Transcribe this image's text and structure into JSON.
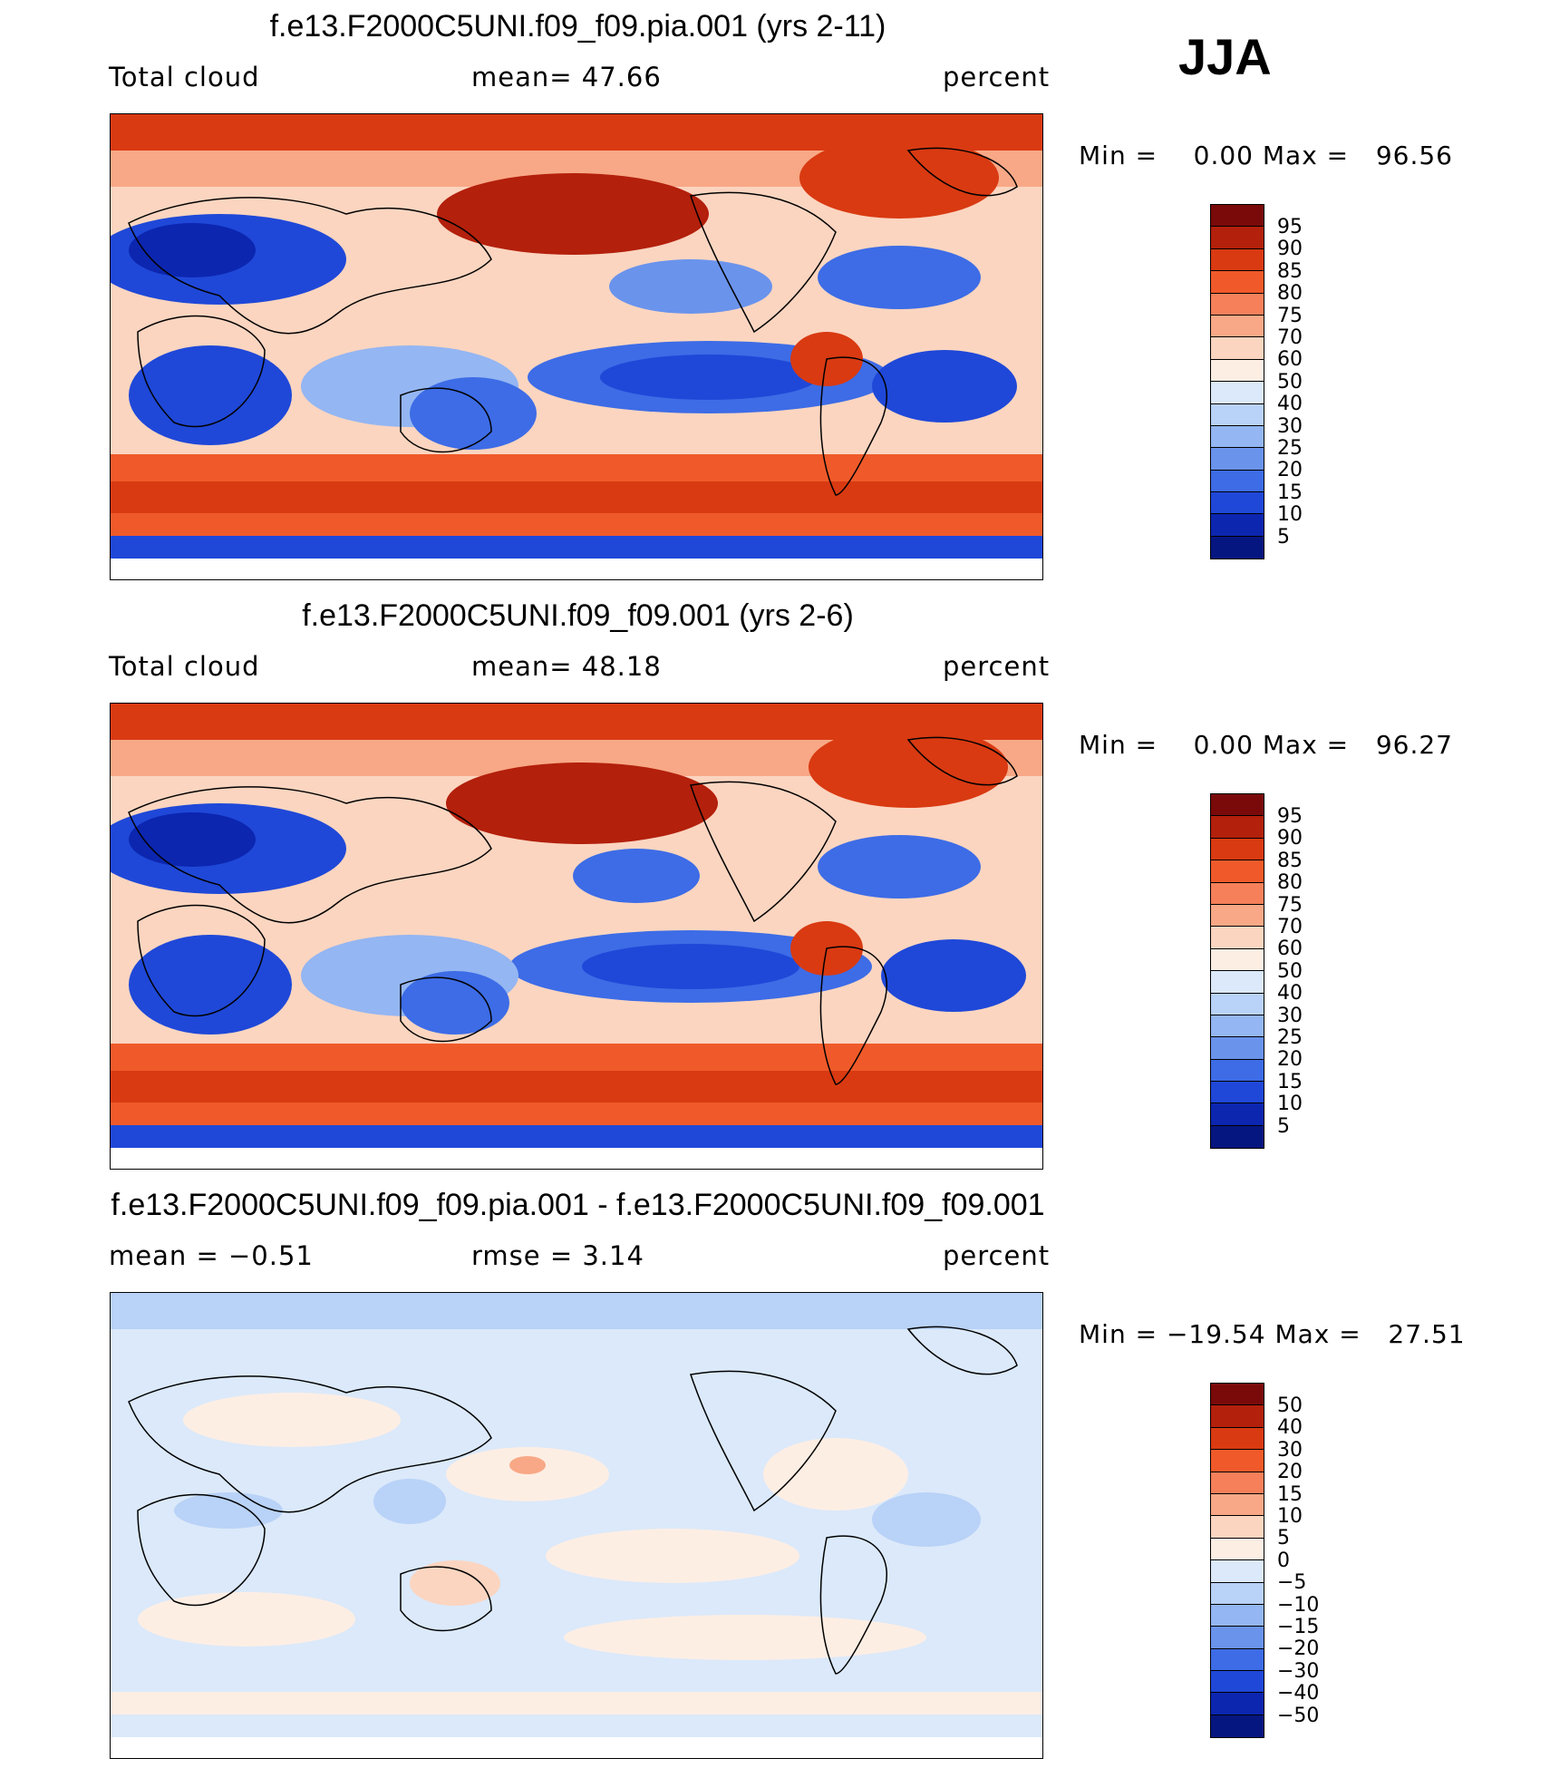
{
  "season": "JJA",
  "panels": [
    {
      "title": "f.e13.F2000C5UNI.f09_f09.pia.001 (yrs 2-11)",
      "left_label": "Total cloud",
      "mid_label": "mean=   47.66",
      "right_label": "percent",
      "minmax": "Min =    0.00 Max =   96.56",
      "colorbar": {
        "colors": [
          "#7a0a0a",
          "#b3200c",
          "#d93a12",
          "#f05a2a",
          "#f5805a",
          "#f8a886",
          "#fbd5c0",
          "#fdeee4",
          "#dbe9fa",
          "#b9d2f7",
          "#94b6f2",
          "#6a93ec",
          "#3d6ce6",
          "#1f48d8",
          "#0c26b0",
          "#061680"
        ],
        "labels": [
          "95",
          "90",
          "85",
          "80",
          "75",
          "70",
          "60",
          "50",
          "40",
          "30",
          "25",
          "20",
          "15",
          "10",
          "5"
        ]
      }
    },
    {
      "title": "f.e13.F2000C5UNI.f09_f09.001 (yrs 2-6)",
      "left_label": "Total cloud",
      "mid_label": "mean=   48.18",
      "right_label": "percent",
      "minmax": "Min =    0.00 Max =   96.27",
      "colorbar": {
        "colors": [
          "#7a0a0a",
          "#b3200c",
          "#d93a12",
          "#f05a2a",
          "#f5805a",
          "#f8a886",
          "#fbd5c0",
          "#fdeee4",
          "#dbe9fa",
          "#b9d2f7",
          "#94b6f2",
          "#6a93ec",
          "#3d6ce6",
          "#1f48d8",
          "#0c26b0",
          "#061680"
        ],
        "labels": [
          "95",
          "90",
          "85",
          "80",
          "75",
          "70",
          "60",
          "50",
          "40",
          "30",
          "25",
          "20",
          "15",
          "10",
          "5"
        ]
      }
    },
    {
      "title": "f.e13.F2000C5UNI.f09_f09.pia.001 - f.e13.F2000C5UNI.f09_f09.001",
      "left_label": "mean =   −0.51",
      "mid_label": "rmse =     3.14",
      "right_label": "percent",
      "minmax": "Min = −19.54 Max =   27.51",
      "colorbar": {
        "colors": [
          "#7a0a0a",
          "#b3200c",
          "#d93a12",
          "#f05a2a",
          "#f5805a",
          "#f8a886",
          "#fbd5c0",
          "#fdeee4",
          "#dbe9fa",
          "#b9d2f7",
          "#94b6f2",
          "#6a93ec",
          "#3d6ce6",
          "#1f48d8",
          "#0c26b0",
          "#061680"
        ],
        "labels": [
          "50",
          "40",
          "30",
          "20",
          "15",
          "10",
          "5",
          "0",
          "−5",
          "−10",
          "−15",
          "−20",
          "−30",
          "−40",
          "−50"
        ]
      }
    }
  ],
  "chart_data": [
    {
      "type": "heatmap",
      "title": "f.e13.F2000C5UNI.f09_f09.pia.001 (yrs 2-11)",
      "variable": "Total cloud",
      "units": "percent",
      "mean": 47.66,
      "min": 0.0,
      "max": 96.56,
      "levels": [
        5,
        10,
        15,
        20,
        25,
        30,
        40,
        50,
        60,
        70,
        75,
        80,
        85,
        90,
        95
      ]
    },
    {
      "type": "heatmap",
      "title": "f.e13.F2000C5UNI.f09_f09.001 (yrs 2-6)",
      "variable": "Total cloud",
      "units": "percent",
      "mean": 48.18,
      "min": 0.0,
      "max": 96.27,
      "levels": [
        5,
        10,
        15,
        20,
        25,
        30,
        40,
        50,
        60,
        70,
        75,
        80,
        85,
        90,
        95
      ]
    },
    {
      "type": "heatmap",
      "title": "f.e13.F2000C5UNI.f09_f09.pia.001 - f.e13.F2000C5UNI.f09_f09.001",
      "units": "percent",
      "mean": -0.51,
      "rmse": 3.14,
      "min": -19.54,
      "max": 27.51,
      "levels": [
        -50,
        -40,
        -30,
        -20,
        -15,
        -10,
        -5,
        0,
        5,
        10,
        15,
        20,
        30,
        40,
        50
      ]
    }
  ]
}
